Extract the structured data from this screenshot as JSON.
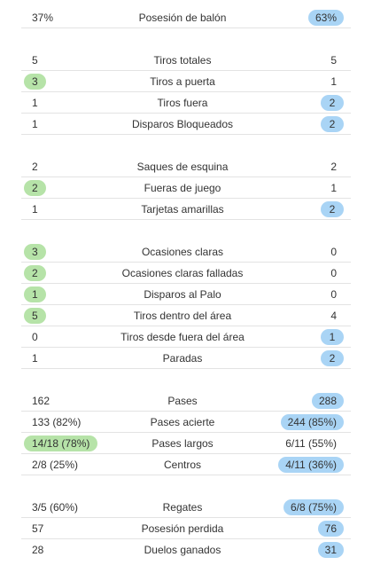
{
  "sections": [
    {
      "rows": [
        {
          "home": "37%",
          "label": "Posesión de balón",
          "away": "63%",
          "highlight": "away"
        }
      ]
    },
    {
      "rows": [
        {
          "home": "5",
          "label": "Tiros totales",
          "away": "5",
          "highlight": "none"
        },
        {
          "home": "3",
          "label": "Tiros a puerta",
          "away": "1",
          "highlight": "home"
        },
        {
          "home": "1",
          "label": "Tiros fuera",
          "away": "2",
          "highlight": "away"
        },
        {
          "home": "1",
          "label": "Disparos Bloqueados",
          "away": "2",
          "highlight": "away"
        }
      ]
    },
    {
      "rows": [
        {
          "home": "2",
          "label": "Saques de esquina",
          "away": "2",
          "highlight": "none"
        },
        {
          "home": "2",
          "label": "Fueras de juego",
          "away": "1",
          "highlight": "home"
        },
        {
          "home": "1",
          "label": "Tarjetas amarillas",
          "away": "2",
          "highlight": "away"
        }
      ]
    },
    {
      "rows": [
        {
          "home": "3",
          "label": "Ocasiones claras",
          "away": "0",
          "highlight": "home"
        },
        {
          "home": "2",
          "label": "Ocasiones claras falladas",
          "away": "0",
          "highlight": "home"
        },
        {
          "home": "1",
          "label": "Disparos al Palo",
          "away": "0",
          "highlight": "home"
        },
        {
          "home": "5",
          "label": "Tiros dentro del área",
          "away": "4",
          "highlight": "home"
        },
        {
          "home": "0",
          "label": "Tiros desde fuera del área",
          "away": "1",
          "highlight": "away"
        },
        {
          "home": "1",
          "label": "Paradas",
          "away": "2",
          "highlight": "away"
        }
      ]
    },
    {
      "rows": [
        {
          "home": "162",
          "label": "Pases",
          "away": "288",
          "highlight": "away"
        },
        {
          "home": "133 (82%)",
          "label": "Pases acierte",
          "away": "244 (85%)",
          "highlight": "away"
        },
        {
          "home": "14/18 (78%)",
          "label": "Pases largos",
          "away": "6/11 (55%)",
          "highlight": "home"
        },
        {
          "home": "2/8 (25%)",
          "label": "Centros",
          "away": "4/11 (36%)",
          "highlight": "away"
        }
      ]
    },
    {
      "rows": [
        {
          "home": "3/5 (60%)",
          "label": "Regates",
          "away": "6/8 (75%)",
          "highlight": "away"
        },
        {
          "home": "57",
          "label": "Posesión perdida",
          "away": "76",
          "highlight": "away"
        },
        {
          "home": "28",
          "label": "Duelos ganados",
          "away": "31",
          "highlight": "away"
        }
      ]
    }
  ],
  "colors": {
    "home_highlight": "#b6e3a8",
    "away_highlight": "#a9d4f5",
    "divider": "#e3e3e3",
    "text": "#333333"
  }
}
